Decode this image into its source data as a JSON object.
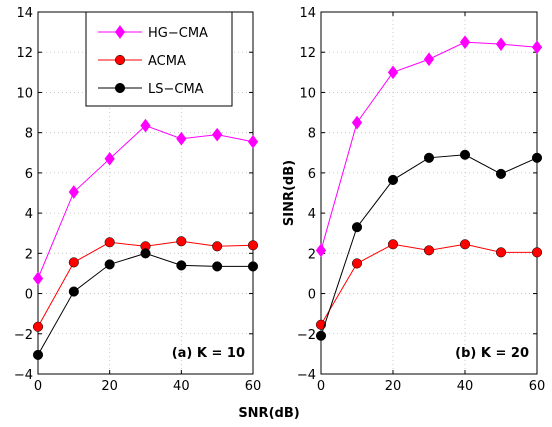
{
  "chart_data": [
    {
      "type": "line",
      "panel_label": "(a) K = 10",
      "x": [
        0,
        10,
        20,
        30,
        40,
        50,
        60
      ],
      "xlim": [
        0,
        60
      ],
      "ylim": [
        -4,
        14
      ],
      "xticks": [
        0,
        20,
        40,
        60
      ],
      "yticks": [
        -4,
        -2,
        0,
        2,
        4,
        6,
        8,
        10,
        12,
        14
      ],
      "grid": true,
      "ylabel": "",
      "legend": {
        "placement": "top-center"
      },
      "series": [
        {
          "name": "HG−CMA",
          "color": "#ff00ff",
          "marker": "diamond",
          "values": [
            0.75,
            5.05,
            6.7,
            8.35,
            7.7,
            7.9,
            7.55
          ]
        },
        {
          "name": "ACMA",
          "color": "#ff0000",
          "marker": "circle",
          "values": [
            -1.65,
            1.55,
            2.55,
            2.35,
            2.6,
            2.35,
            2.4
          ]
        },
        {
          "name": "LS−CMA",
          "color": "#000000",
          "marker": "circle",
          "values": [
            -3.05,
            0.1,
            1.45,
            2.0,
            1.4,
            1.35,
            1.35
          ]
        }
      ]
    },
    {
      "type": "line",
      "panel_label": "(b) K = 20",
      "x": [
        0,
        10,
        20,
        30,
        40,
        50,
        60
      ],
      "xlim": [
        0,
        60
      ],
      "ylim": [
        -4,
        14
      ],
      "xticks": [
        0,
        20,
        40,
        60
      ],
      "yticks": [
        -4,
        -2,
        0,
        2,
        4,
        6,
        8,
        10,
        12,
        14
      ],
      "grid": true,
      "ylabel": "SINR(dB)",
      "series": [
        {
          "name": "HG−CMA",
          "color": "#ff00ff",
          "marker": "diamond",
          "values": [
            2.15,
            8.5,
            11.0,
            11.65,
            12.5,
            12.4,
            12.25
          ]
        },
        {
          "name": "ACMA",
          "color": "#ff0000",
          "marker": "circle",
          "values": [
            -1.55,
            1.5,
            2.45,
            2.15,
            2.45,
            2.05,
            2.05
          ]
        },
        {
          "name": "LS−CMA",
          "color": "#000000",
          "marker": "circle",
          "values": [
            -2.1,
            3.3,
            5.65,
            6.75,
            6.9,
            5.95,
            6.75
          ]
        }
      ]
    }
  ],
  "shared_xlabel": "SNR(dB)"
}
